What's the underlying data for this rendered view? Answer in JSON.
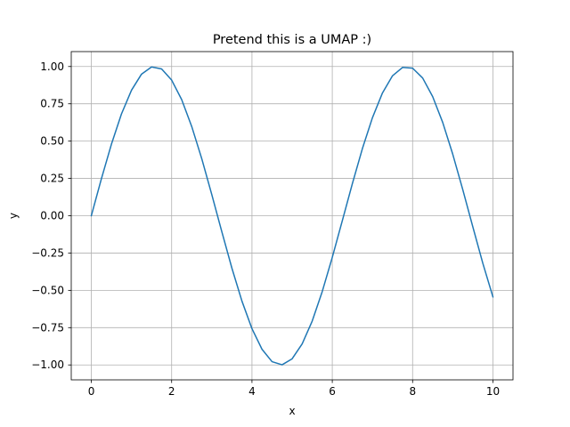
{
  "chart_data": {
    "type": "line",
    "title": "Pretend this is a UMAP :)",
    "xlabel": "x",
    "ylabel": "y",
    "xlim": [
      -0.5,
      10.5
    ],
    "ylim": [
      -1.1,
      1.1
    ],
    "grid": true,
    "legend": "none",
    "x_ticks": [
      0,
      2,
      4,
      6,
      8,
      10
    ],
    "x_tick_labels": [
      "0",
      "2",
      "4",
      "6",
      "8",
      "10"
    ],
    "y_ticks": [
      -1.0,
      -0.75,
      -0.5,
      -0.25,
      0.0,
      0.25,
      0.5,
      0.75,
      1.0
    ],
    "y_tick_labels": [
      "−1.00",
      "−0.75",
      "−0.50",
      "−0.25",
      "0.00",
      "0.25",
      "0.50",
      "0.75",
      "1.00"
    ],
    "colors": {
      "line": "#1f77b4",
      "grid": "#b0b0b0",
      "axes": "#000000"
    },
    "series": [
      {
        "x": [
          0,
          0.25,
          0.5,
          0.75,
          1,
          1.25,
          1.5,
          1.75,
          2,
          2.25,
          2.5,
          2.75,
          3,
          3.25,
          3.5,
          3.75,
          4,
          4.25,
          4.5,
          4.75,
          5,
          5.25,
          5.5,
          5.75,
          6,
          6.25,
          6.5,
          6.75,
          7,
          7.25,
          7.5,
          7.75,
          8,
          8.25,
          8.5,
          8.75,
          9,
          9.25,
          9.5,
          9.75,
          10
        ],
        "y": [
          0,
          0.247,
          0.479,
          0.682,
          0.841,
          0.949,
          0.997,
          0.984,
          0.909,
          0.778,
          0.598,
          0.382,
          0.141,
          -0.108,
          -0.351,
          -0.572,
          -0.757,
          -0.895,
          -0.978,
          -0.999,
          -0.959,
          -0.859,
          -0.706,
          -0.508,
          -0.279,
          -0.033,
          0.215,
          0.45,
          0.657,
          0.823,
          0.938,
          0.994,
          0.989,
          0.923,
          0.798,
          0.625,
          0.412,
          0.174,
          -0.075,
          -0.32,
          -0.544
        ]
      }
    ]
  }
}
